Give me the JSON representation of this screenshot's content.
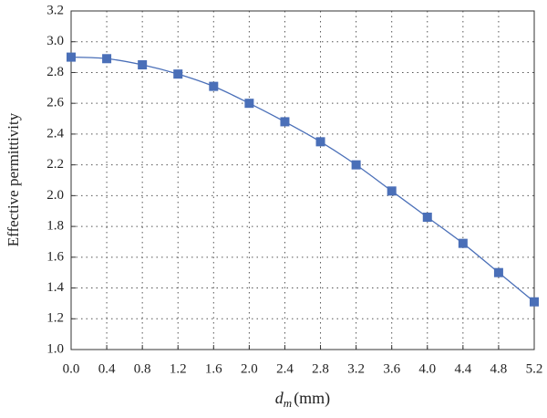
{
  "chart_data": {
    "type": "line",
    "xlabel": {
      "symbol": "d",
      "subscript": "m",
      "unit": "(mm)"
    },
    "ylabel": "Effective permittivity",
    "x": [
      0,
      0.4,
      0.8,
      1.2,
      1.6,
      2.0,
      2.4,
      2.8,
      3.2,
      3.6,
      4.0,
      4.4,
      4.8,
      5.2
    ],
    "series": [
      {
        "color": "#4a6fb8",
        "values": [
          2.9,
          2.89,
          2.85,
          2.79,
          2.71,
          2.6,
          2.48,
          2.35,
          2.2,
          2.03,
          1.86,
          1.69,
          1.5,
          1.31
        ]
      }
    ],
    "xlim": [
      0,
      5.2
    ],
    "xticks": [
      {
        "value": 0,
        "label": "0.0"
      },
      0.4,
      0.8,
      1.2,
      1.6,
      {
        "value": 2,
        "label": "2.0"
      },
      2.4,
      2.8,
      3.2,
      3.6,
      {
        "value": 4,
        "label": "4.0"
      },
      4.4,
      4.8,
      5.2
    ],
    "ylim": [
      1,
      3.2
    ],
    "yticks": [
      {
        "value": 1,
        "label": "1.0"
      },
      1.2,
      1.4,
      1.6,
      1.8,
      {
        "value": 2,
        "label": "2.0"
      },
      2.2,
      2.4,
      2.6,
      2.8,
      {
        "value": 3,
        "label": "3.0"
      },
      3.2
    ],
    "grid": true
  }
}
